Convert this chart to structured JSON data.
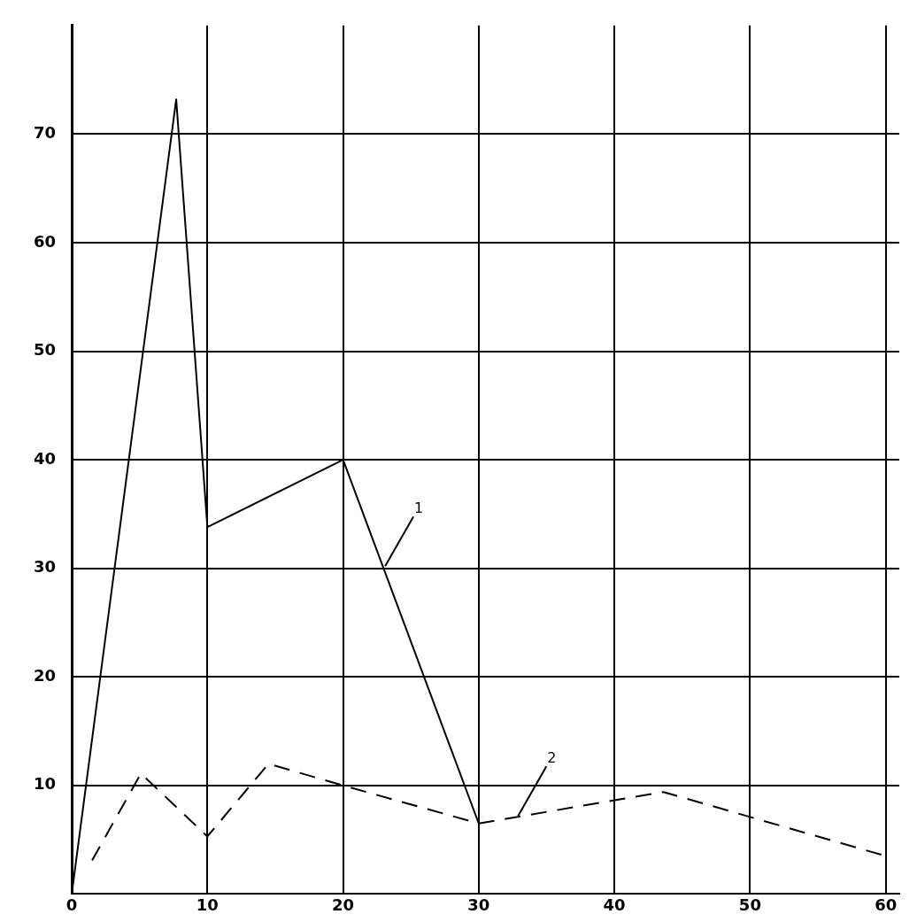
{
  "chart_data": {
    "type": "line",
    "xlim": [
      0,
      61
    ],
    "ylim": [
      0,
      80
    ],
    "xticks": [
      0,
      10,
      20,
      30,
      40,
      50,
      60
    ],
    "yticks": [
      10,
      20,
      30,
      40,
      50,
      60,
      70
    ],
    "grid": true,
    "marker": "none",
    "legend": false,
    "series": [
      {
        "color": "#000000",
        "line_style": "solid",
        "x": [
          0,
          7.7,
          10,
          20,
          30
        ],
        "values": [
          0,
          73.2,
          33.8,
          40,
          6.5
        ]
      },
      {
        "color": "#000000",
        "line_style": "dashed",
        "x": [
          1.5,
          5.1,
          10,
          14.5,
          20,
          30,
          43.6,
          60
        ],
        "values": [
          3.1,
          11.1,
          5.3,
          12,
          10,
          6.5,
          9.4,
          3.5
        ]
      }
    ],
    "annotations": [
      {
        "text": "1",
        "x": 23.1,
        "y": 30.2
      },
      {
        "text": "2",
        "x": 32.9,
        "y": 7.2
      }
    ]
  }
}
